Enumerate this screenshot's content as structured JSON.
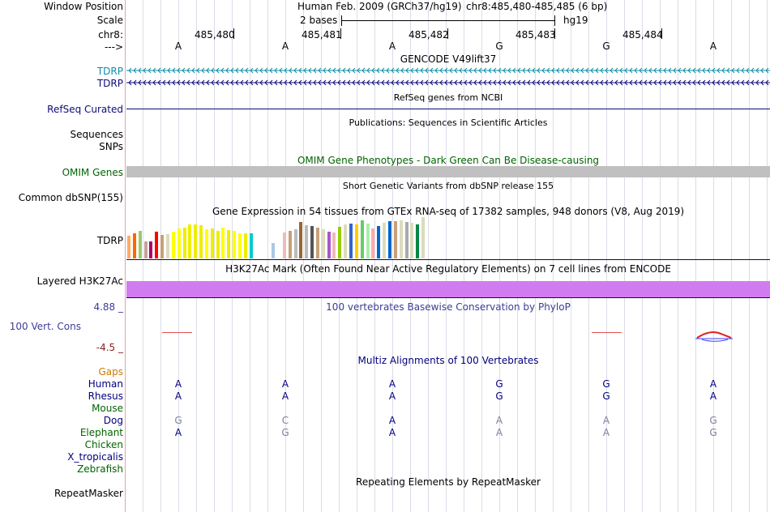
{
  "header": {
    "window_position_label": "Window Position",
    "scale_label": "Scale",
    "chrom_label": "chr8:",
    "strand_label": "--->",
    "assembly_text": "Human Feb. 2009 (GRCh37/hg19)",
    "position_text": "chr8:485,480-485,485 (6 bp)",
    "scale_text": "2 bases",
    "db_text": "hg19"
  },
  "ruler": {
    "ticks": [
      "485,480",
      "485,481",
      "485,482",
      "485,483",
      "485,484"
    ],
    "bases": [
      "A",
      "A",
      "A",
      "G",
      "G",
      "A"
    ]
  },
  "tracks": {
    "gencode": {
      "title": "GENCODE V49lift37",
      "gene1": "TDRP",
      "gene2": "TDRP"
    },
    "refseq": {
      "title": "RefSeq genes from NCBI",
      "label": "RefSeq Curated"
    },
    "publications": {
      "title": "Publications: Sequences in Scientific Articles",
      "label1": "Sequences",
      "label2": "SNPs"
    },
    "omim": {
      "title": "OMIM Gene Phenotypes - Dark Green Can Be Disease-causing",
      "label": "OMIM Genes"
    },
    "dbsnp": {
      "title": "Short Genetic Variants from dbSNP release 155",
      "label": "Common dbSNP(155)"
    },
    "gtex": {
      "title": "Gene Expression in 54 tissues from GTEx RNA-seq of 17382 samples, 948 donors (V8, Aug 2019)",
      "label": "TDRP"
    },
    "h3k27ac": {
      "title": "H3K27Ac Mark (Often Found Near Active Regulatory Elements) on 7 cell lines from ENCODE",
      "label": "Layered H3K27Ac"
    },
    "phylop": {
      "title": "100 vertebrates Basewise Conservation by PhyloP",
      "label": "100 Vert. Cons",
      "max": "4.88 _",
      "min": "-4.5 _"
    },
    "multiz": {
      "title": "Multiz Alignments of 100 Vertebrates",
      "gaps_label": "Gaps",
      "species": [
        {
          "name": "Human",
          "bases": [
            "A",
            "A",
            "A",
            "G",
            "G",
            "A"
          ],
          "color": "#00007f"
        },
        {
          "name": "Rhesus",
          "bases": [
            "A",
            "A",
            "A",
            "G",
            "G",
            "A"
          ],
          "color": "#00007f"
        },
        {
          "name": "Mouse",
          "bases": [
            "",
            "",
            "",
            "",
            "",
            ""
          ],
          "color": "#00007f"
        },
        {
          "name": "Dog",
          "bases": [
            "G",
            "C",
            "A",
            "A",
            "A",
            "G"
          ],
          "color": "#00007f"
        },
        {
          "name": "Elephant",
          "bases": [
            "A",
            "G",
            "A",
            "A",
            "A",
            "G"
          ],
          "color": "#00007f"
        },
        {
          "name": "Chicken",
          "bases": [
            "",
            "",
            "",
            "",
            "",
            ""
          ],
          "color": "#00007f"
        },
        {
          "name": "X_tropicalis",
          "bases": [
            "",
            "",
            "",
            "",
            "",
            ""
          ],
          "color": "#00007f"
        },
        {
          "name": "Zebrafish",
          "bases": [
            "",
            "",
            "",
            "",
            "",
            ""
          ],
          "color": "#00007f"
        }
      ]
    },
    "repeatmasker": {
      "title": "Repeating Elements by RepeatMasker",
      "label": "RepeatMasker"
    }
  },
  "chart_data": {
    "type": "bar",
    "title": "Gene Expression in 54 tissues from GTEx RNA-seq of 17382 samples, 948 donors (V8, Aug 2019)",
    "xlabel": "",
    "ylabel": "",
    "ylim": [
      0,
      52
    ],
    "values": [
      28,
      31,
      34,
      21,
      21,
      33,
      29,
      30,
      33,
      37,
      38,
      42,
      42,
      41,
      36,
      37,
      34,
      38,
      35,
      34,
      31,
      31,
      31,
      0,
      0,
      0,
      19,
      0,
      32,
      34,
      36,
      45,
      41,
      40,
      38,
      36,
      33,
      32,
      39,
      42,
      43,
      42,
      47,
      43,
      37,
      40,
      44,
      46,
      46,
      47,
      45,
      44,
      42,
      51
    ],
    "colors": [
      "#ffaa66",
      "#ff6600",
      "#99cc66",
      "#c8a0a0",
      "#aa0066",
      "#ff0000",
      "#c8a078",
      "#dcdcbe",
      "#ffff00",
      "#ffff00",
      "#eeee00",
      "#eeee00",
      "#eeee00",
      "#eeee00",
      "#ffff00",
      "#eeee00",
      "#eeee00",
      "#ffff00",
      "#eeee00",
      "#ffff00",
      "#ffff00",
      "#eeee00",
      "#00cccc",
      "#ffffff",
      "#ffffff",
      "#ffffff",
      "#aac8e6",
      "#ffffff",
      "#eebbbb",
      "#c8a078",
      "#bbbbbb",
      "#996633",
      "#bbbbbb",
      "#555555",
      "#c8a078",
      "#dcdcbe",
      "#aa55cc",
      "#eebbbb",
      "#99cc00",
      "#dcdcbe",
      "#3366cc",
      "#ffcc00",
      "#66cc66",
      "#aaeeaa",
      "#ffaaaa",
      "#0066cc",
      "#dcdcbe",
      "#0066cc",
      "#c8a078",
      "#dcdcbe",
      "#aaaaaa",
      "#dcdcbe",
      "#008844",
      "#dcdcbe"
    ]
  },
  "colors": {
    "gencode_primary": "#0c8ea8",
    "gencode_secondary": "#0c0c78",
    "refseq": "#0c0c78",
    "omim_bar": "#c0c0c0",
    "omim_text": "#006400",
    "h3k27ac": "#d17bf0",
    "phylop_text": "#3c3c96",
    "phylop_min": "#8b2020",
    "gaps": "#d07800",
    "species_text": "#00007f",
    "faded_base": "#7f7fa0"
  }
}
